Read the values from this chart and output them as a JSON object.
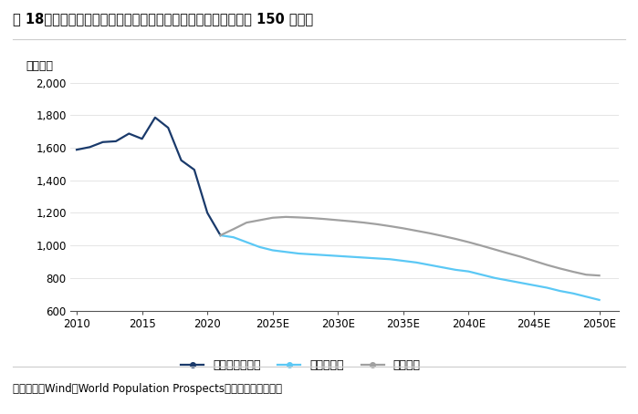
{
  "title": "图 18：每年新增的新生儿将较未推出三孩和支持政策时有望提升 150 万以上",
  "ylabel": "（万人）",
  "source": "数据来源：Wind，World Population Prospects，国泰君安证券研究",
  "ylim": [
    600,
    2050
  ],
  "yticks": [
    600,
    800,
    1000,
    1200,
    1400,
    1600,
    1800,
    2000
  ],
  "ytick_labels": [
    "600",
    "800",
    "1,000",
    "1,200",
    "1,400",
    "1,600",
    "1,800",
    "2,000"
  ],
  "series1_label": "出生人数（万）",
  "series1_color": "#1a3a6b",
  "series1_x": [
    2010,
    2011,
    2012,
    2013,
    2014,
    2015,
    2016,
    2017,
    2018,
    2019,
    2020,
    2021
  ],
  "series1_y": [
    1588,
    1604,
    1635,
    1640,
    1687,
    1655,
    1786,
    1723,
    1523,
    1465,
    1200,
    1062
  ],
  "series2_label": "无政策支持",
  "series2_color": "#5bc8f5",
  "series2_x": [
    2021,
    2022,
    2023,
    2024,
    2025,
    2026,
    2027,
    2028,
    2029,
    2030,
    2031,
    2032,
    2033,
    2034,
    2035,
    2036,
    2037,
    2038,
    2039,
    2040,
    2041,
    2042,
    2043,
    2044,
    2045,
    2046,
    2047,
    2048,
    2049,
    2050
  ],
  "series2_y": [
    1062,
    1050,
    1020,
    990,
    970,
    960,
    950,
    945,
    940,
    935,
    930,
    925,
    920,
    915,
    905,
    895,
    880,
    865,
    850,
    840,
    820,
    800,
    785,
    770,
    755,
    740,
    720,
    705,
    685,
    665
  ],
  "series3_label": "放开三孩",
  "series3_color": "#a0a0a0",
  "series3_x": [
    2021,
    2022,
    2023,
    2024,
    2025,
    2026,
    2027,
    2028,
    2029,
    2030,
    2031,
    2032,
    2033,
    2034,
    2035,
    2036,
    2037,
    2038,
    2039,
    2040,
    2041,
    2042,
    2043,
    2044,
    2045,
    2046,
    2047,
    2048,
    2049,
    2050
  ],
  "series3_y": [
    1062,
    1100,
    1140,
    1155,
    1170,
    1175,
    1172,
    1168,
    1162,
    1155,
    1148,
    1140,
    1130,
    1118,
    1105,
    1090,
    1075,
    1058,
    1040,
    1020,
    998,
    975,
    952,
    930,
    905,
    880,
    858,
    838,
    820,
    815
  ],
  "xtick_labels": [
    "2010",
    "2015",
    "2020",
    "2025E",
    "2030E",
    "2035E",
    "2040E",
    "2045E",
    "2050E"
  ],
  "xtick_positions": [
    2010,
    2015,
    2020,
    2025,
    2030,
    2035,
    2040,
    2045,
    2050
  ],
  "background_color": "#ffffff",
  "plot_bg_color": "#ffffff",
  "grid_color": "#e0e0e0",
  "title_fontsize": 10.5,
  "label_fontsize": 9,
  "tick_fontsize": 8.5,
  "legend_fontsize": 9,
  "source_fontsize": 8.5
}
